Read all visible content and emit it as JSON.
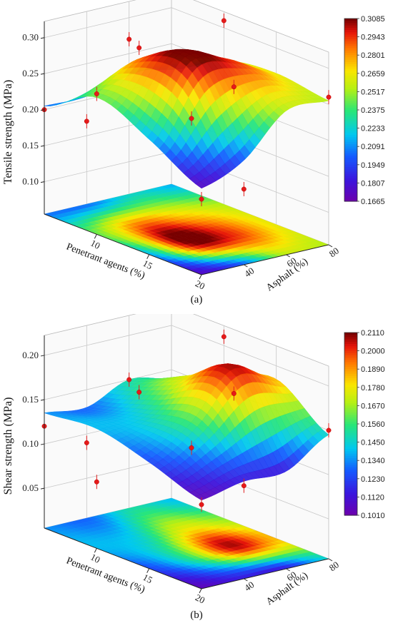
{
  "chart_data": [
    {
      "type": "surface3d",
      "caption": "(a)",
      "zlabel": "Tensile strength (MPa)",
      "xlabel": "Penetrant agents (%)",
      "ylabel": "Asphalt (%)",
      "xticks": [
        "10",
        "15",
        "20"
      ],
      "yticks": [
        "40",
        "60",
        "80"
      ],
      "zticks": [
        "0.10",
        "0.15",
        "0.20",
        "0.25",
        "0.30"
      ],
      "colorbar_ticks": [
        "0.3085",
        "0.2943",
        "0.2801",
        "0.2659",
        "0.2517",
        "0.2375",
        "0.2233",
        "0.2091",
        "0.1949",
        "0.1807",
        "0.1665"
      ],
      "zlim": [
        0.1665,
        0.3085
      ],
      "x": [
        5,
        10,
        15,
        20
      ],
      "y": [
        20,
        40,
        60,
        80
      ],
      "z": [
        [
          0.205,
          0.205,
          0.225,
          0.215
        ],
        [
          0.245,
          0.285,
          0.27,
          0.255
        ],
        [
          0.215,
          0.305,
          0.295,
          0.265
        ],
        [
          0.175,
          0.2,
          0.255,
          0.255
        ]
      ],
      "points": [
        {
          "x": 5,
          "y": 20,
          "z": 0.2
        },
        {
          "x": 5,
          "y": 60,
          "z": 0.27
        },
        {
          "x": 10,
          "y": 40,
          "z": 0.3
        },
        {
          "x": 10,
          "y": 80,
          "z": 0.31
        },
        {
          "x": 15,
          "y": 40,
          "z": 0.23
        },
        {
          "x": 15,
          "y": 60,
          "z": 0.26
        },
        {
          "x": 20,
          "y": 20,
          "z": 0.16
        },
        {
          "x": 20,
          "y": 40,
          "z": 0.16
        },
        {
          "x": 20,
          "y": 80,
          "z": 0.26
        },
        {
          "x": 5,
          "y": 40,
          "z": 0.17
        },
        {
          "x": 10,
          "y": 20,
          "z": 0.25
        }
      ]
    },
    {
      "type": "surface3d",
      "caption": "(b)",
      "zlabel": "Shear strength (MPa)",
      "xlabel": "Penetrant agents (%)",
      "ylabel": "Asphalt (%)",
      "xticks": [
        "10",
        "15",
        "20"
      ],
      "yticks": [
        "40",
        "60",
        "80"
      ],
      "zticks": [
        "0.05",
        "0.10",
        "0.15",
        "0.20"
      ],
      "colorbar_ticks": [
        "0.2110",
        "0.2000",
        "0.1890",
        "0.1780",
        "0.1670",
        "0.1560",
        "0.1450",
        "0.1340",
        "0.1230",
        "0.1120",
        "0.1010"
      ],
      "zlim": [
        0.101,
        0.211
      ],
      "x": [
        5,
        10,
        15,
        20
      ],
      "y": [
        20,
        40,
        60,
        80
      ],
      "z": [
        [
          0.135,
          0.13,
          0.15,
          0.14
        ],
        [
          0.14,
          0.145,
          0.175,
          0.165
        ],
        [
          0.125,
          0.155,
          0.205,
          0.185
        ],
        [
          0.105,
          0.115,
          0.115,
          0.145
        ]
      ],
      "points": [
        {
          "x": 5,
          "y": 20,
          "z": 0.12
        },
        {
          "x": 5,
          "y": 60,
          "z": 0.15
        },
        {
          "x": 10,
          "y": 40,
          "z": 0.17
        },
        {
          "x": 10,
          "y": 80,
          "z": 0.21
        },
        {
          "x": 15,
          "y": 40,
          "z": 0.13
        },
        {
          "x": 15,
          "y": 60,
          "z": 0.18
        },
        {
          "x": 20,
          "y": 20,
          "z": 0.1
        },
        {
          "x": 20,
          "y": 40,
          "z": 0.11
        },
        {
          "x": 20,
          "y": 80,
          "z": 0.15
        },
        {
          "x": 5,
          "y": 40,
          "z": 0.09
        },
        {
          "x": 10,
          "y": 20,
          "z": 0.08
        }
      ]
    }
  ]
}
